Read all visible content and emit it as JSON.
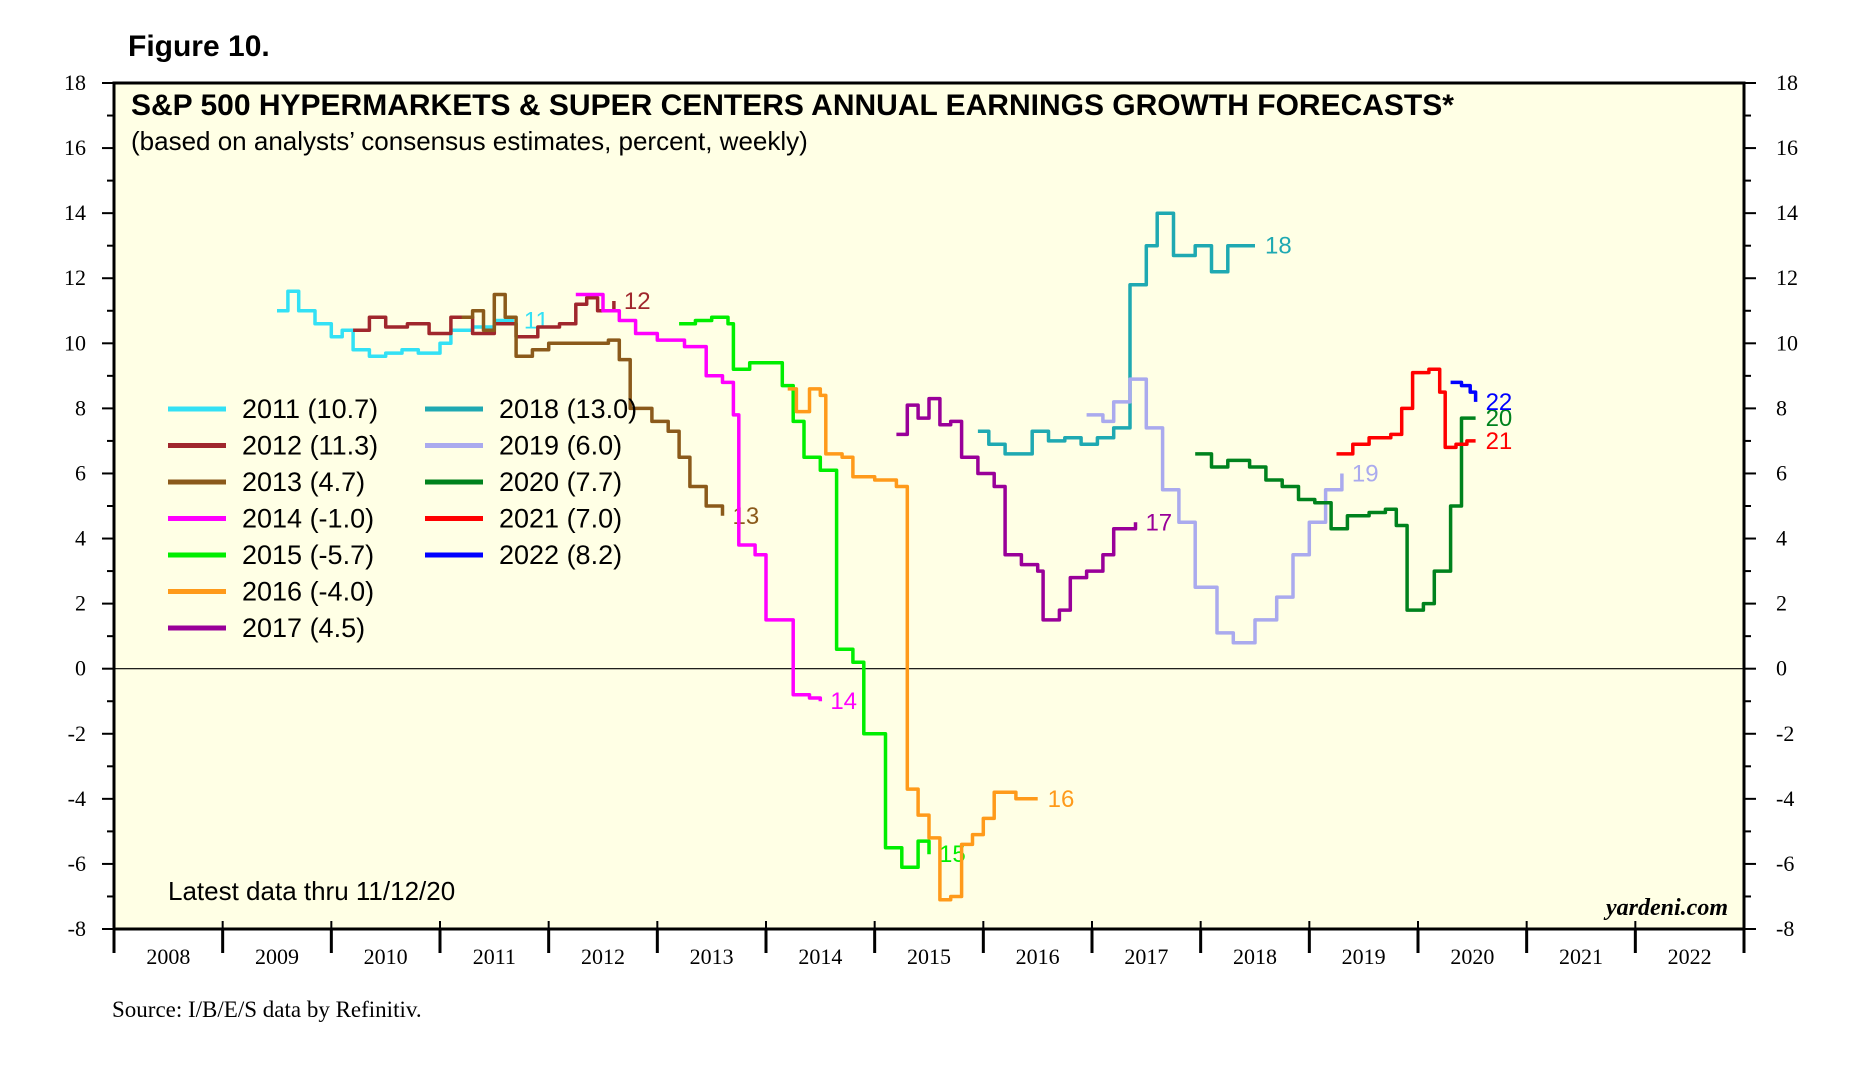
{
  "figure_label": "Figure 10.",
  "source": "Source: I/B/E/S data by Refinitiv.",
  "chart_data": {
    "type": "line",
    "title": "S&P 500 HYPERMARKETS & SUPER CENTERS ANNUAL EARNINGS GROWTH FORECASTS*",
    "subtitle": "(based on analysts’ consensus estimates, percent, weekly)",
    "note": "Latest data thru 11/12/20",
    "brand": "yardeni.com",
    "xlabel": "",
    "ylabel": "",
    "x_range": [
      2008,
      2023
    ],
    "ylim": [
      -8,
      18
    ],
    "y_ticks": [
      18,
      16,
      14,
      12,
      10,
      8,
      6,
      4,
      2,
      0,
      -2,
      -4,
      -6,
      -8
    ],
    "x_ticks": [
      "2008",
      "2009",
      "2010",
      "2011",
      "2012",
      "2013",
      "2014",
      "2015",
      "2016",
      "2017",
      "2018",
      "2019",
      "2020",
      "2021",
      "2022"
    ],
    "zero_line": true,
    "legend_position": "middle-left",
    "series": [
      {
        "name": "2011",
        "legend": "2011 (10.7)",
        "end_label": "11",
        "color": "#33E1F5",
        "points": [
          [
            2009.5,
            11.0
          ],
          [
            2009.6,
            11.6
          ],
          [
            2009.7,
            11.0
          ],
          [
            2009.85,
            10.6
          ],
          [
            2010.0,
            10.2
          ],
          [
            2010.1,
            10.4
          ],
          [
            2010.2,
            9.8
          ],
          [
            2010.35,
            9.6
          ],
          [
            2010.5,
            9.7
          ],
          [
            2010.65,
            9.8
          ],
          [
            2010.8,
            9.7
          ],
          [
            2011.0,
            10.0
          ],
          [
            2011.1,
            10.4
          ],
          [
            2011.3,
            10.5
          ],
          [
            2011.5,
            10.7
          ],
          [
            2011.68,
            10.7
          ]
        ]
      },
      {
        "name": "2012",
        "legend": "2012 (11.3)",
        "end_label": "12",
        "color": "#A0272D",
        "points": [
          [
            2010.2,
            10.4
          ],
          [
            2010.35,
            10.8
          ],
          [
            2010.5,
            10.5
          ],
          [
            2010.7,
            10.6
          ],
          [
            2010.9,
            10.3
          ],
          [
            2011.1,
            10.8
          ],
          [
            2011.3,
            10.3
          ],
          [
            2011.5,
            10.6
          ],
          [
            2011.7,
            10.2
          ],
          [
            2011.9,
            10.5
          ],
          [
            2012.1,
            10.6
          ],
          [
            2012.25,
            11.2
          ],
          [
            2012.35,
            11.4
          ],
          [
            2012.45,
            11.0
          ],
          [
            2012.6,
            11.3
          ]
        ]
      },
      {
        "name": "2013",
        "legend": "2013 (4.7)",
        "end_label": "13",
        "color": "#8B5A1B",
        "points": [
          [
            2011.2,
            10.8
          ],
          [
            2011.3,
            11.0
          ],
          [
            2011.4,
            10.4
          ],
          [
            2011.5,
            11.5
          ],
          [
            2011.6,
            10.8
          ],
          [
            2011.7,
            9.6
          ],
          [
            2011.85,
            9.8
          ],
          [
            2012.0,
            10.0
          ],
          [
            2012.2,
            10.0
          ],
          [
            2012.4,
            10.0
          ],
          [
            2012.55,
            10.1
          ],
          [
            2012.65,
            9.5
          ],
          [
            2012.75,
            8.0
          ],
          [
            2012.95,
            7.6
          ],
          [
            2013.1,
            7.3
          ],
          [
            2013.2,
            6.5
          ],
          [
            2013.3,
            5.6
          ],
          [
            2013.45,
            5.0
          ],
          [
            2013.6,
            4.7
          ]
        ]
      },
      {
        "name": "2014",
        "legend": "2014 (-1.0)",
        "end_label": "14",
        "color": "#FF00FF",
        "points": [
          [
            2012.25,
            11.5
          ],
          [
            2012.4,
            11.5
          ],
          [
            2012.5,
            11.0
          ],
          [
            2012.65,
            10.7
          ],
          [
            2012.8,
            10.3
          ],
          [
            2013.0,
            10.1
          ],
          [
            2013.25,
            9.9
          ],
          [
            2013.45,
            9.0
          ],
          [
            2013.6,
            8.8
          ],
          [
            2013.7,
            7.8
          ],
          [
            2013.75,
            3.8
          ],
          [
            2013.9,
            3.5
          ],
          [
            2014.0,
            1.5
          ],
          [
            2014.15,
            1.5
          ],
          [
            2014.25,
            -0.8
          ],
          [
            2014.4,
            -0.9
          ],
          [
            2014.5,
            -1.0
          ]
        ]
      },
      {
        "name": "2015",
        "legend": "2015 (-5.7)",
        "end_label": "15",
        "color": "#00EE00",
        "points": [
          [
            2013.2,
            10.6
          ],
          [
            2013.35,
            10.7
          ],
          [
            2013.5,
            10.8
          ],
          [
            2013.65,
            10.6
          ],
          [
            2013.7,
            9.2
          ],
          [
            2013.85,
            9.4
          ],
          [
            2014.0,
            9.4
          ],
          [
            2014.15,
            8.7
          ],
          [
            2014.25,
            7.6
          ],
          [
            2014.35,
            6.5
          ],
          [
            2014.5,
            6.1
          ],
          [
            2014.6,
            6.1
          ],
          [
            2014.65,
            0.6
          ],
          [
            2014.8,
            0.2
          ],
          [
            2014.9,
            -2.0
          ],
          [
            2015.05,
            -2.0
          ],
          [
            2015.1,
            -5.5
          ],
          [
            2015.25,
            -6.1
          ],
          [
            2015.4,
            -5.3
          ],
          [
            2015.5,
            -5.7
          ]
        ]
      },
      {
        "name": "2016",
        "legend": "2016 (-4.0)",
        "end_label": "16",
        "color": "#FF9A1A",
        "points": [
          [
            2014.2,
            8.6
          ],
          [
            2014.28,
            7.9
          ],
          [
            2014.4,
            8.6
          ],
          [
            2014.5,
            8.4
          ],
          [
            2014.55,
            6.6
          ],
          [
            2014.7,
            6.5
          ],
          [
            2014.8,
            5.9
          ],
          [
            2015.0,
            5.8
          ],
          [
            2015.2,
            5.6
          ],
          [
            2015.3,
            -3.7
          ],
          [
            2015.4,
            -4.5
          ],
          [
            2015.5,
            -5.2
          ],
          [
            2015.6,
            -7.1
          ],
          [
            2015.7,
            -7.0
          ],
          [
            2015.8,
            -5.4
          ],
          [
            2015.9,
            -5.1
          ],
          [
            2016.0,
            -4.6
          ],
          [
            2016.1,
            -3.8
          ],
          [
            2016.3,
            -4.0
          ],
          [
            2016.5,
            -4.0
          ]
        ]
      },
      {
        "name": "2017",
        "legend": "2017 (4.5)",
        "end_label": "17",
        "color": "#990099",
        "points": [
          [
            2015.2,
            7.2
          ],
          [
            2015.3,
            8.1
          ],
          [
            2015.4,
            7.7
          ],
          [
            2015.5,
            8.3
          ],
          [
            2015.6,
            7.5
          ],
          [
            2015.7,
            7.6
          ],
          [
            2015.8,
            6.5
          ],
          [
            2015.95,
            6.0
          ],
          [
            2016.1,
            5.6
          ],
          [
            2016.2,
            3.5
          ],
          [
            2016.35,
            3.2
          ],
          [
            2016.5,
            3.0
          ],
          [
            2016.55,
            1.5
          ],
          [
            2016.7,
            1.8
          ],
          [
            2016.8,
            2.8
          ],
          [
            2016.95,
            3.0
          ],
          [
            2017.1,
            3.5
          ],
          [
            2017.2,
            4.3
          ],
          [
            2017.4,
            4.5
          ]
        ]
      },
      {
        "name": "2018",
        "legend": "2018 (13.0)",
        "end_label": "18",
        "color": "#1FA9B2",
        "points": [
          [
            2015.95,
            7.3
          ],
          [
            2016.05,
            6.9
          ],
          [
            2016.2,
            6.6
          ],
          [
            2016.35,
            6.6
          ],
          [
            2016.45,
            7.3
          ],
          [
            2016.6,
            7.0
          ],
          [
            2016.75,
            7.1
          ],
          [
            2016.9,
            6.9
          ],
          [
            2017.05,
            7.1
          ],
          [
            2017.2,
            7.4
          ],
          [
            2017.35,
            11.8
          ],
          [
            2017.5,
            13.0
          ],
          [
            2017.6,
            14.0
          ],
          [
            2017.75,
            12.7
          ],
          [
            2017.95,
            13.0
          ],
          [
            2018.1,
            12.2
          ],
          [
            2018.25,
            13.0
          ],
          [
            2018.5,
            13.0
          ]
        ]
      },
      {
        "name": "2019",
        "legend": "2019 (6.0)",
        "end_label": "19",
        "color": "#AAAAEE",
        "points": [
          [
            2016.95,
            7.8
          ],
          [
            2017.1,
            7.6
          ],
          [
            2017.2,
            8.2
          ],
          [
            2017.35,
            8.9
          ],
          [
            2017.5,
            7.4
          ],
          [
            2017.65,
            5.5
          ],
          [
            2017.8,
            4.5
          ],
          [
            2017.95,
            2.5
          ],
          [
            2018.15,
            1.1
          ],
          [
            2018.3,
            0.8
          ],
          [
            2018.5,
            1.5
          ],
          [
            2018.7,
            2.2
          ],
          [
            2018.85,
            3.5
          ],
          [
            2019.0,
            4.5
          ],
          [
            2019.15,
            5.5
          ],
          [
            2019.3,
            6.0
          ]
        ]
      },
      {
        "name": "2020",
        "legend": "2020 (7.7)",
        "end_label": "20",
        "color": "#00821D",
        "points": [
          [
            2017.95,
            6.6
          ],
          [
            2018.1,
            6.2
          ],
          [
            2018.25,
            6.4
          ],
          [
            2018.45,
            6.2
          ],
          [
            2018.6,
            5.8
          ],
          [
            2018.75,
            5.6
          ],
          [
            2018.9,
            5.2
          ],
          [
            2019.05,
            5.1
          ],
          [
            2019.2,
            4.3
          ],
          [
            2019.35,
            4.7
          ],
          [
            2019.55,
            4.8
          ],
          [
            2019.7,
            4.9
          ],
          [
            2019.8,
            4.4
          ],
          [
            2019.9,
            1.8
          ],
          [
            2020.05,
            2.0
          ],
          [
            2020.15,
            3.0
          ],
          [
            2020.3,
            5.0
          ],
          [
            2020.4,
            7.7
          ],
          [
            2020.53,
            7.7
          ]
        ]
      },
      {
        "name": "2021",
        "legend": "2021 (7.0)",
        "end_label": "21",
        "color": "#FF0000",
        "points": [
          [
            2019.25,
            6.6
          ],
          [
            2019.4,
            6.9
          ],
          [
            2019.55,
            7.1
          ],
          [
            2019.75,
            7.2
          ],
          [
            2019.85,
            8.0
          ],
          [
            2019.95,
            9.1
          ],
          [
            2020.1,
            9.2
          ],
          [
            2020.2,
            8.5
          ],
          [
            2020.25,
            6.8
          ],
          [
            2020.35,
            6.9
          ],
          [
            2020.45,
            7.0
          ],
          [
            2020.53,
            7.0
          ]
        ]
      },
      {
        "name": "2022",
        "legend": "2022 (8.2)",
        "end_label": "22",
        "color": "#0000FF",
        "points": [
          [
            2020.3,
            8.8
          ],
          [
            2020.4,
            8.7
          ],
          [
            2020.48,
            8.5
          ],
          [
            2020.53,
            8.2
          ]
        ]
      }
    ]
  }
}
